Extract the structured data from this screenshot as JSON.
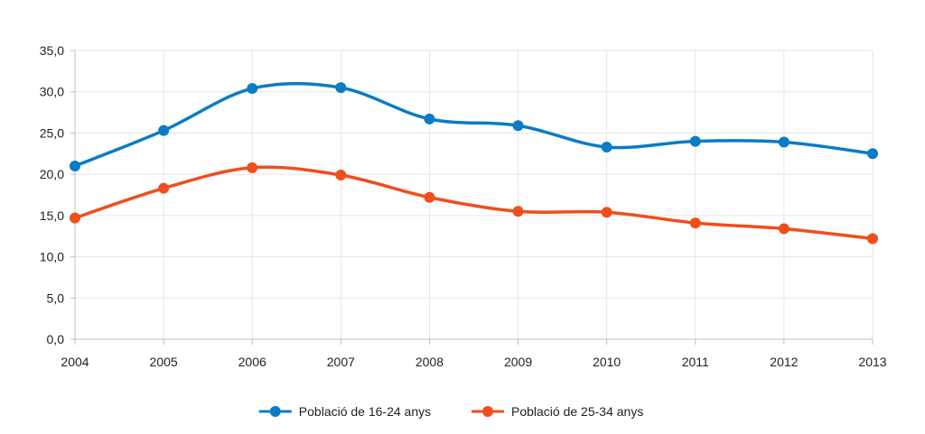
{
  "chart_data": {
    "type": "line",
    "title": "",
    "xlabel": "",
    "ylabel": "",
    "x": [
      "2004",
      "2005",
      "2006",
      "2007",
      "2008",
      "2009",
      "2010",
      "2011",
      "2012",
      "2013"
    ],
    "ylim": [
      0,
      35
    ],
    "yticks": [
      "0,0",
      "5,0",
      "10,0",
      "15,0",
      "20,0",
      "25,0",
      "30,0",
      "35,0"
    ],
    "grid": true,
    "legend_position": "bottom-center",
    "series": [
      {
        "name": "Població de 16-24 anys",
        "color": "#0a7cc6",
        "values": [
          21.0,
          25.3,
          30.4,
          30.5,
          26.7,
          25.9,
          23.3,
          24.0,
          23.9,
          22.5
        ]
      },
      {
        "name": "Població de 25-34 anys",
        "color": "#f04e1c",
        "values": [
          14.7,
          18.3,
          20.8,
          19.9,
          17.2,
          15.5,
          15.4,
          14.1,
          13.4,
          12.2
        ]
      }
    ]
  }
}
